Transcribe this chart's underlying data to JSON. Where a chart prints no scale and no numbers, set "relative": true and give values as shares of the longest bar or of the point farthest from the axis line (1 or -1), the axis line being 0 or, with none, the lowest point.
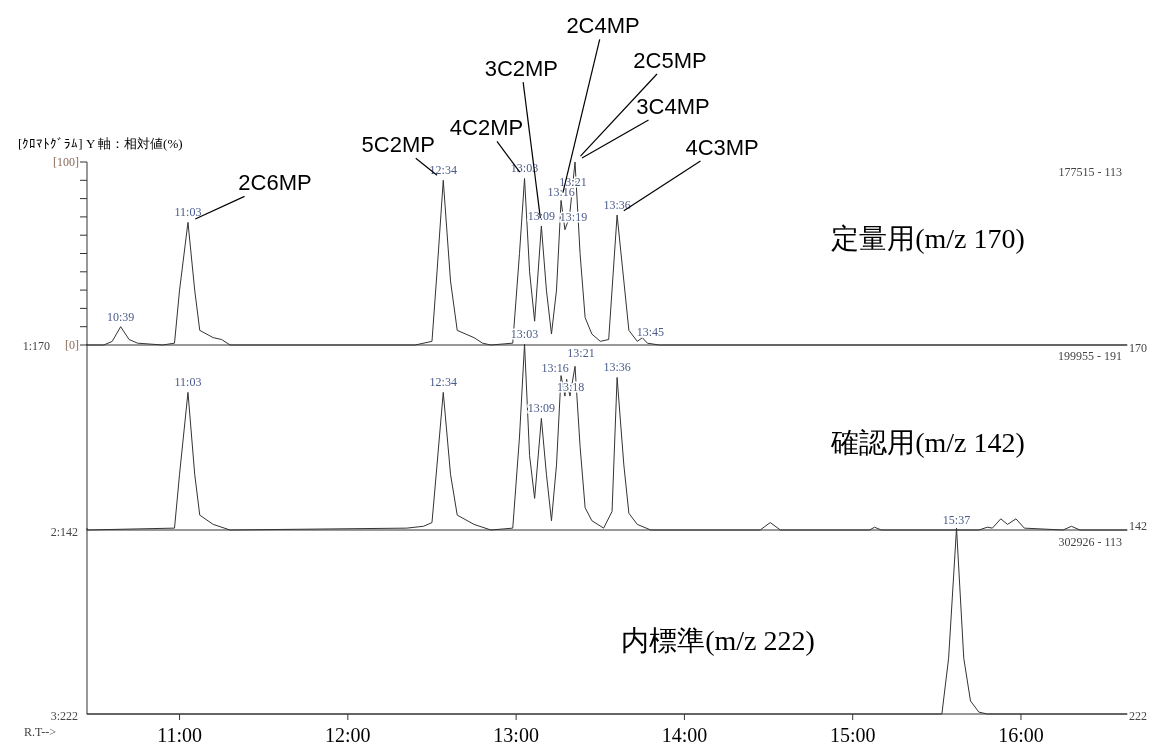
{
  "chart_data": [
    {
      "type": "line",
      "title": "定量用(m/z 170)",
      "ylabel": "[ｸﾛﾏﾄｸﾞﾗﾑ] Y 軸：相対値(%)",
      "xlim": [
        10.45,
        16.63
      ],
      "ylim": [
        0,
        100
      ],
      "tick_labels": "y",
      "yticks": [
        {
          "value": 0,
          "label": "[0]"
        },
        {
          "value": 10,
          "label": null
        },
        {
          "value": 20,
          "label": null
        },
        {
          "value": 30,
          "label": null
        },
        {
          "value": 40,
          "label": null
        },
        {
          "value": 50,
          "label": null
        },
        {
          "value": 60,
          "label": null
        },
        {
          "value": 70,
          "label": null
        },
        {
          "value": 80,
          "label": null
        },
        {
          "value": 90,
          "label": null
        },
        {
          "value": 100,
          "label": "[100]"
        }
      ],
      "x": [
        10.45,
        10.55,
        10.6,
        10.65,
        10.7,
        10.75,
        10.9,
        10.97,
        11.0,
        11.05,
        11.09,
        11.12,
        11.2,
        11.25,
        11.3,
        12.4,
        12.5,
        12.53,
        12.567,
        12.61,
        12.65,
        12.75,
        12.8,
        12.85,
        12.98,
        13.02,
        13.05,
        13.08,
        13.11,
        13.15,
        13.18,
        13.21,
        13.24,
        13.267,
        13.29,
        13.317,
        13.35,
        13.38,
        13.41,
        13.45,
        13.5,
        13.55,
        13.6,
        13.64,
        13.67,
        13.72,
        13.75,
        13.78,
        13.85,
        16.63
      ],
      "series": [
        {
          "color": "#333333",
          "values": [
            0,
            0,
            2,
            10,
            3,
            1,
            0,
            1,
            30,
            67,
            30,
            8,
            4,
            3,
            0,
            0,
            2,
            40,
            90,
            35,
            8,
            4,
            1,
            0,
            1,
            50,
            91,
            40,
            13,
            65,
            30,
            6,
            30,
            79,
            63,
            70,
            100,
            50,
            15,
            6,
            2,
            3,
            71,
            35,
            8,
            2,
            4,
            1,
            0,
            0
          ]
        }
      ],
      "annotations": [
        {
          "text": "10:39",
          "x": 10.65,
          "y": 10
        },
        {
          "text": "11:03",
          "x": 11.05,
          "y": 67
        },
        {
          "text": "12:34",
          "x": 12.567,
          "y": 90
        },
        {
          "text": "13:03",
          "x": 13.05,
          "y": 91
        },
        {
          "text": "13:09",
          "x": 13.15,
          "y": 65
        },
        {
          "text": "13:16",
          "x": 13.267,
          "y": 79
        },
        {
          "text": "13:19",
          "x": 13.317,
          "y": 70
        },
        {
          "text": "13:21",
          "x": 13.35,
          "y": 100
        },
        {
          "text": "13:36",
          "x": 13.6,
          "y": 71
        },
        {
          "text": "13:45",
          "x": 13.75,
          "y": 4
        },
        {
          "text": "2C6MP",
          "x": 11.05,
          "y": 67
        },
        {
          "text": "5C2MP",
          "x": 12.567,
          "y": 90
        },
        {
          "text": "4C2MP",
          "x": 13.05,
          "y": 91
        },
        {
          "text": "3C2MP",
          "x": 13.15,
          "y": 65
        },
        {
          "text": "2C4MP",
          "x": 13.267,
          "y": 79
        },
        {
          "text": "2C5MP",
          "x": 13.35,
          "y": 100
        },
        {
          "text": "3C4MP",
          "x": 13.35,
          "y": 100
        },
        {
          "text": "4C3MP",
          "x": 13.6,
          "y": 71
        },
        "1:170",
        "177515 - 113",
        "170",
        "199955 - 191"
      ]
    },
    {
      "type": "line",
      "title": "確認用(m/z 142)",
      "xlim": [
        10.45,
        16.63
      ],
      "relative": true,
      "tick_labels": false,
      "x": [
        10.45,
        10.97,
        11.0,
        11.05,
        11.09,
        11.12,
        11.2,
        11.3,
        12.35,
        12.45,
        12.5,
        12.53,
        12.567,
        12.61,
        12.65,
        12.75,
        12.85,
        12.98,
        13.02,
        13.05,
        13.08,
        13.11,
        13.15,
        13.18,
        13.21,
        13.24,
        13.267,
        13.29,
        13.3,
        13.32,
        13.35,
        13.38,
        13.41,
        13.45,
        13.52,
        13.57,
        13.6,
        13.64,
        13.67,
        13.72,
        13.8,
        14.45,
        14.51,
        14.57,
        15.1,
        15.13,
        15.17,
        15.75,
        15.8,
        15.83,
        15.88,
        15.92,
        15.97,
        16.02,
        16.25,
        16.3,
        16.35,
        16.63
      ],
      "series": [
        {
          "color": "#333333",
          "values": [
            0,
            0.01,
            0.3,
            0.74,
            0.3,
            0.08,
            0.03,
            0,
            0.01,
            0.02,
            0.04,
            0.35,
            0.74,
            0.3,
            0.08,
            0.03,
            0,
            0.01,
            0.5,
            1,
            0.4,
            0.17,
            0.6,
            0.3,
            0.05,
            0.35,
            0.83,
            0.72,
            0.81,
            0.72,
            0.88,
            0.45,
            0.12,
            0.05,
            0.01,
            0.1,
            0.82,
            0.35,
            0.09,
            0.03,
            0,
            0,
            0.04,
            0,
            0,
            0.015,
            0,
            0,
            0.015,
            0.01,
            0.06,
            0.03,
            0.06,
            0.01,
            0,
            0.02,
            0,
            0
          ]
        }
      ],
      "annotations": [
        {
          "text": "11:03",
          "x": 11.05,
          "y": 0.74
        },
        {
          "text": "12:34",
          "x": 12.567,
          "y": 0.74
        },
        {
          "text": "13:03",
          "x": 13.05,
          "y": 1
        },
        {
          "text": "13:09",
          "x": 13.15,
          "y": 0.6
        },
        {
          "text": "13:16",
          "x": 13.267,
          "y": 0.83
        },
        {
          "text": "13:18",
          "x": 13.3,
          "y": 0.81
        },
        {
          "text": "13:21",
          "x": 13.35,
          "y": 0.88
        },
        {
          "text": "13:36",
          "x": 13.6,
          "y": 0.82
        },
        "2:142",
        "142",
        "302926 - 113"
      ]
    },
    {
      "type": "line",
      "title": "内標準(m/z 222)",
      "xlim": [
        10.45,
        16.63
      ],
      "relative": true,
      "xticks": [
        {
          "value": 11,
          "label": "11:00"
        },
        {
          "value": 12,
          "label": "12:00"
        },
        {
          "value": 13,
          "label": "13:00"
        },
        {
          "value": 14,
          "label": "14:00"
        },
        {
          "value": 15,
          "label": "15:00"
        },
        {
          "value": 16,
          "label": "16:00"
        }
      ],
      "x": [
        10.45,
        15.53,
        15.57,
        15.617,
        15.66,
        15.7,
        15.75,
        15.8,
        16.63
      ],
      "series": [
        {
          "color": "#333333",
          "values": [
            0,
            0,
            0.3,
            1,
            0.3,
            0.07,
            0.01,
            0,
            0
          ]
        }
      ],
      "annotations": [
        {
          "text": "15:37",
          "x": 15.617,
          "y": 1
        },
        "3:222",
        "222",
        "R.T-->"
      ]
    }
  ]
}
